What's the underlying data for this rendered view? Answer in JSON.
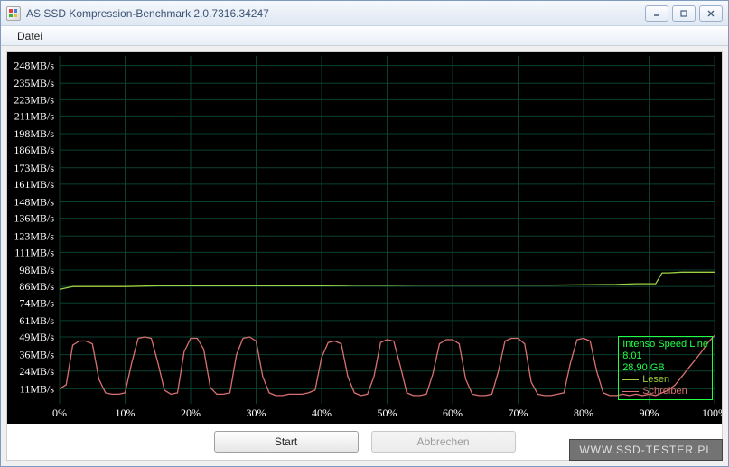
{
  "window": {
    "title": "AS SSD Kompression-Benchmark 2.0.7316.34247",
    "minimize_tip": "Minimize",
    "maximize_tip": "Maximize",
    "close_tip": "Close"
  },
  "menu": {
    "file": "Datei"
  },
  "buttons": {
    "start": "Start",
    "cancel": "Abbrechen"
  },
  "watermark": "www.ssd-tester.pl",
  "chart": {
    "background": "#000000",
    "grid_color": "#0a4030",
    "axis_color": "#ffffff",
    "label_color": "#ffffff",
    "title_fontsize": 12,
    "y": {
      "min": 0,
      "max": 255,
      "ticks": [
        11,
        24,
        36,
        49,
        61,
        74,
        86,
        98,
        111,
        123,
        136,
        148,
        161,
        173,
        186,
        198,
        211,
        223,
        235,
        248
      ],
      "unit": "MB/s"
    },
    "x": {
      "min": 0,
      "max": 100,
      "ticks": [
        0,
        10,
        20,
        30,
        40,
        50,
        60,
        70,
        80,
        90,
        100
      ],
      "unit": "%"
    },
    "series": [
      {
        "name": "Lesen",
        "color": "#9fd040",
        "width": 1.3,
        "points": [
          [
            0,
            84
          ],
          [
            2,
            86
          ],
          [
            5,
            86
          ],
          [
            10,
            86
          ],
          [
            15,
            86.5
          ],
          [
            20,
            86.5
          ],
          [
            25,
            86.5
          ],
          [
            30,
            86.5
          ],
          [
            35,
            86.5
          ],
          [
            40,
            86.5
          ],
          [
            45,
            86.8
          ],
          [
            50,
            86.8
          ],
          [
            55,
            87
          ],
          [
            60,
            87
          ],
          [
            65,
            87
          ],
          [
            70,
            87
          ],
          [
            75,
            87
          ],
          [
            80,
            87.2
          ],
          [
            85,
            87.5
          ],
          [
            88,
            88
          ],
          [
            90,
            88
          ],
          [
            91,
            88
          ],
          [
            92,
            96
          ],
          [
            93,
            96
          ],
          [
            95,
            96.5
          ],
          [
            98,
            96.5
          ],
          [
            100,
            96.5
          ]
        ]
      },
      {
        "name": "Schreiben",
        "color": "#d87070",
        "width": 1.3,
        "points": [
          [
            0,
            11
          ],
          [
            1,
            14
          ],
          [
            2,
            43
          ],
          [
            3,
            46
          ],
          [
            4,
            46
          ],
          [
            5,
            44
          ],
          [
            6,
            18
          ],
          [
            7,
            8
          ],
          [
            8,
            7
          ],
          [
            9,
            7
          ],
          [
            10,
            8
          ],
          [
            11,
            30
          ],
          [
            12,
            48
          ],
          [
            13,
            49
          ],
          [
            14,
            48
          ],
          [
            15,
            30
          ],
          [
            16,
            10
          ],
          [
            17,
            7
          ],
          [
            18,
            8
          ],
          [
            19,
            38
          ],
          [
            20,
            48
          ],
          [
            21,
            48
          ],
          [
            22,
            40
          ],
          [
            23,
            12
          ],
          [
            24,
            7
          ],
          [
            25,
            7
          ],
          [
            26,
            8
          ],
          [
            27,
            36
          ],
          [
            28,
            48
          ],
          [
            29,
            49
          ],
          [
            30,
            46
          ],
          [
            31,
            20
          ],
          [
            32,
            8
          ],
          [
            33,
            6
          ],
          [
            34,
            6
          ],
          [
            35,
            7
          ],
          [
            36,
            7
          ],
          [
            37,
            7
          ],
          [
            38,
            8
          ],
          [
            39,
            10
          ],
          [
            40,
            34
          ],
          [
            41,
            45
          ],
          [
            42,
            46
          ],
          [
            43,
            44
          ],
          [
            44,
            20
          ],
          [
            45,
            8
          ],
          [
            46,
            6
          ],
          [
            47,
            7
          ],
          [
            48,
            20
          ],
          [
            49,
            45
          ],
          [
            50,
            47
          ],
          [
            51,
            46
          ],
          [
            52,
            28
          ],
          [
            53,
            8
          ],
          [
            54,
            6
          ],
          [
            55,
            6
          ],
          [
            56,
            7
          ],
          [
            57,
            22
          ],
          [
            58,
            44
          ],
          [
            59,
            47
          ],
          [
            60,
            47
          ],
          [
            61,
            44
          ],
          [
            62,
            18
          ],
          [
            63,
            7
          ],
          [
            64,
            6
          ],
          [
            65,
            6
          ],
          [
            66,
            7
          ],
          [
            67,
            24
          ],
          [
            68,
            46
          ],
          [
            69,
            48
          ],
          [
            70,
            48
          ],
          [
            71,
            44
          ],
          [
            72,
            16
          ],
          [
            73,
            7
          ],
          [
            74,
            6
          ],
          [
            75,
            6
          ],
          [
            76,
            7
          ],
          [
            77,
            8
          ],
          [
            78,
            30
          ],
          [
            79,
            47
          ],
          [
            80,
            48
          ],
          [
            81,
            46
          ],
          [
            82,
            24
          ],
          [
            83,
            8
          ],
          [
            84,
            6
          ],
          [
            85,
            6
          ],
          [
            86,
            7
          ],
          [
            87,
            6
          ],
          [
            88,
            7
          ],
          [
            89,
            6
          ],
          [
            90,
            7
          ],
          [
            91,
            6
          ],
          [
            92,
            8
          ],
          [
            93,
            10
          ],
          [
            94,
            14
          ],
          [
            95,
            20
          ],
          [
            96,
            26
          ],
          [
            97,
            32
          ],
          [
            98,
            38
          ],
          [
            99,
            45
          ],
          [
            100,
            50
          ]
        ]
      }
    ],
    "legend": {
      "title": "Intenso Speed Line 8.01",
      "line2": "28,90 GB",
      "position": "bottom-right-inside",
      "border_color": "#22ff44"
    }
  }
}
